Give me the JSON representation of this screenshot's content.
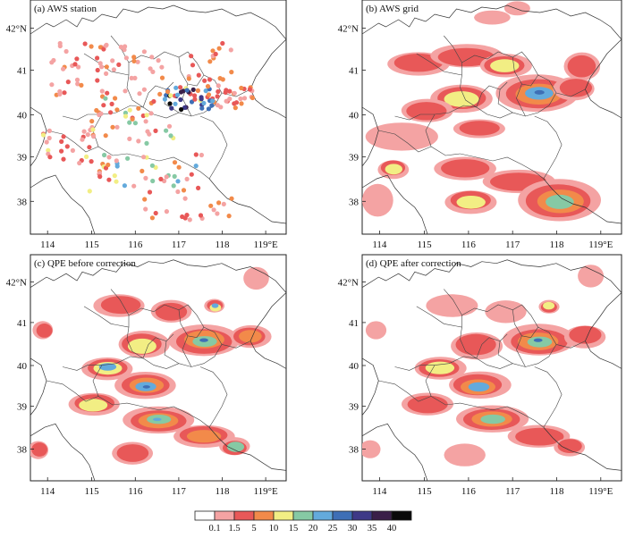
{
  "panels": [
    {
      "id": "a",
      "title": "(a) AWS station"
    },
    {
      "id": "b",
      "title": "(b) AWS grid"
    },
    {
      "id": "c",
      "title": "(c) QPE before correction"
    },
    {
      "id": "d",
      "title": "(d) QPE after correction"
    }
  ],
  "lon_ticks": [
    "114",
    "115",
    "116",
    "117",
    "118",
    "119°E"
  ],
  "lat_ticks": [
    "42°N",
    "41",
    "40",
    "39",
    "38"
  ],
  "legend": {
    "labels": [
      "0.1",
      "1.5",
      "5",
      "10",
      "15",
      "20",
      "25",
      "30",
      "35",
      "40"
    ],
    "colors": [
      "#ffffff",
      "#f4a3a3",
      "#e85858",
      "#f28a4a",
      "#f2ee84",
      "#86c9a4",
      "#63aadc",
      "#3e6fb6",
      "#3e3987",
      "#3a1f48",
      "#0a0a0a"
    ]
  }
}
